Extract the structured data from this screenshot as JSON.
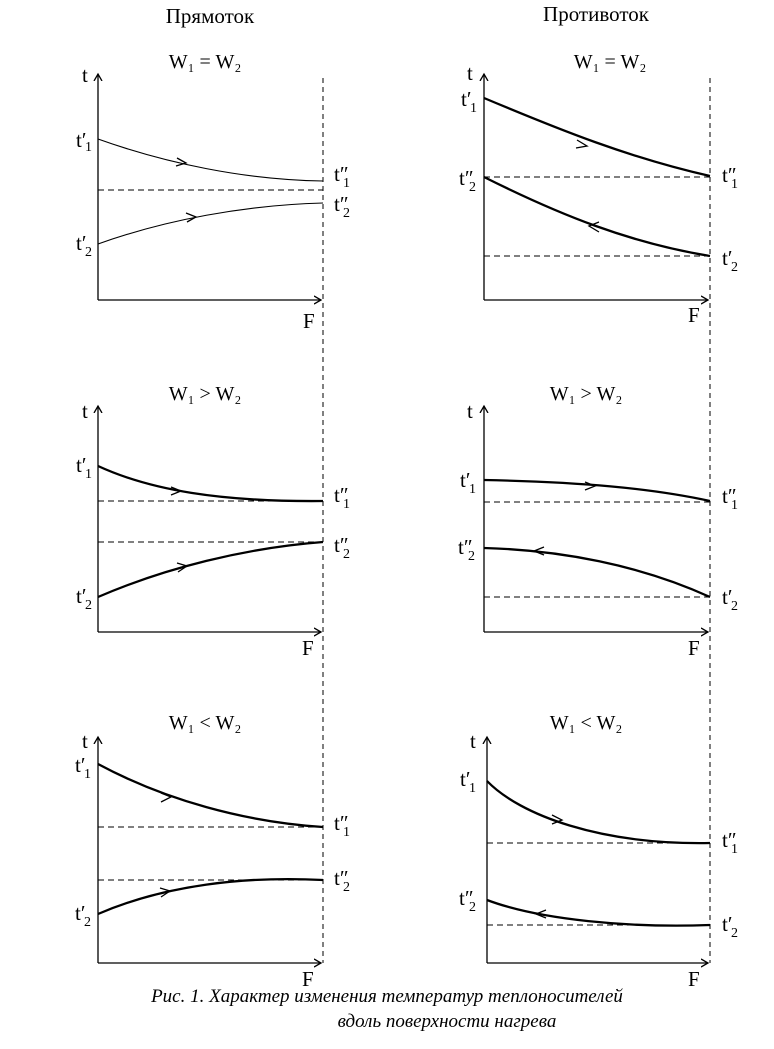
{
  "headers": {
    "left": "Прямоток",
    "right": "Противоток"
  },
  "axis_labels": {
    "y": "t",
    "x": "F"
  },
  "label_parts": {
    "t": "t",
    "prime": "′",
    "double_prime": "″",
    "sub1": "1",
    "sub2": "2"
  },
  "panels": [
    {
      "id": "parallel-equal",
      "column": "left",
      "condition": "W₁ = W₂",
      "fluid1_weight": "thin",
      "fluid2_weight": "thin"
    },
    {
      "id": "counter-equal",
      "column": "right",
      "condition": "W₁ = W₂",
      "fluid1_weight": "bold",
      "fluid2_weight": "bold"
    },
    {
      "id": "parallel-greater",
      "column": "left",
      "condition": "W₁ > W₂",
      "fluid1_weight": "bold",
      "fluid2_weight": "bold"
    },
    {
      "id": "counter-greater",
      "column": "right",
      "condition": "W₁ > W₂",
      "fluid1_weight": "bold",
      "fluid2_weight": "bold"
    },
    {
      "id": "parallel-less",
      "column": "left",
      "condition": "W₁ < W₂",
      "fluid1_weight": "bold",
      "fluid2_weight": "bold"
    },
    {
      "id": "counter-less",
      "column": "right",
      "condition": "W₁ < W₂",
      "fluid1_weight": "bold",
      "fluid2_weight": "bold"
    }
  ],
  "caption": {
    "line1": "Рис. 1. Характер изменения температур теплоносителей",
    "line2": "вдоль поверхности нагрева"
  }
}
